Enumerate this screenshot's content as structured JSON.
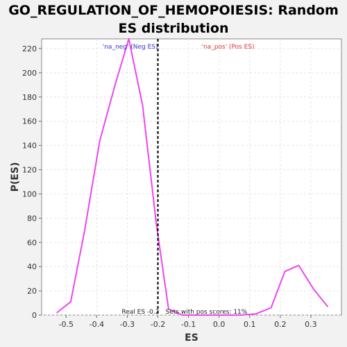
{
  "chart_data": {
    "type": "line",
    "title_line1": "GO_REGULATION_OF_HEMOPOIESIS: Random",
    "title_line2": "ES distribution",
    "xlabel": "ES",
    "ylabel": "P(ES)",
    "xlim": [
      -0.58,
      0.4
    ],
    "ylim": [
      0,
      228
    ],
    "xticks": [
      -0.5,
      -0.4,
      -0.3,
      -0.2,
      -0.1,
      0.0,
      0.1,
      0.2,
      0.3
    ],
    "xtick_labels": [
      "-0.5",
      "-0.4",
      "-0.3",
      "-0.2",
      "-0.1",
      "0.0",
      "0.1",
      "0.2",
      "0.3"
    ],
    "yticks": [
      0,
      20,
      40,
      60,
      80,
      100,
      120,
      140,
      160,
      180,
      200,
      220
    ],
    "grid": true,
    "series": [
      {
        "color": "#ee44ee",
        "x": [
          -0.53,
          -0.485,
          -0.44,
          -0.39,
          -0.34,
          -0.295,
          -0.25,
          -0.205,
          -0.165,
          -0.12,
          -0.08,
          -0.03,
          0.02,
          0.07,
          0.12,
          0.17,
          0.215,
          0.26,
          0.31,
          0.355
        ],
        "y": [
          2,
          11,
          69,
          144,
          190,
          228,
          173,
          75,
          5,
          0,
          0,
          0,
          0,
          0,
          1,
          6,
          36,
          41,
          21,
          7
        ]
      }
    ],
    "vline": {
      "x": -0.2,
      "style": "dashed",
      "color": "#000000"
    },
    "annotations": {
      "neg": {
        "text": "'na_neg' (Neg ES)",
        "color": "#3333cc"
      },
      "pos": {
        "text": "'na_pos' (Pos ES)",
        "color": "#dd3333"
      },
      "real_es": {
        "text": "Real ES -0.2",
        "color": "#222222"
      },
      "sets_pos": {
        "text": "Sets with pos scores: 11%",
        "color": "#222222"
      }
    }
  }
}
